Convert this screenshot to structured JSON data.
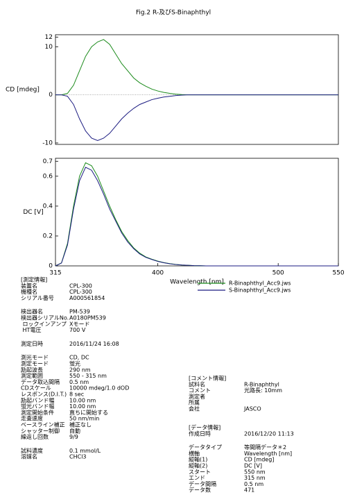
{
  "title": "Fig.2 R-及びS-Binaphthyl",
  "chart_data": [
    {
      "type": "line",
      "ylabel": "CD [mdeg]",
      "x": [
        315,
        320,
        325,
        330,
        335,
        340,
        345,
        350,
        355,
        360,
        365,
        370,
        375,
        380,
        385,
        390,
        395,
        400,
        405,
        410,
        415,
        420,
        425,
        430,
        435,
        440,
        445,
        450,
        455,
        460,
        465,
        470,
        475,
        480,
        485,
        490,
        495,
        500,
        505,
        510,
        515,
        520,
        525,
        530,
        535,
        540,
        545,
        550
      ],
      "xlim": [
        315,
        550
      ],
      "ylim": [
        -10.3,
        12.5
      ],
      "yticks": [
        -10,
        0,
        10,
        12
      ],
      "series": [
        {
          "color": "#1a8a1a",
          "values": [
            0,
            0,
            0.3,
            2,
            5,
            8,
            10,
            11,
            11.5,
            10.5,
            8.5,
            6.5,
            5,
            3.5,
            2.5,
            1.8,
            1.2,
            0.8,
            0.5,
            0.3,
            0.15,
            0.05,
            0,
            0,
            0,
            0,
            0,
            0,
            0,
            0,
            0,
            0,
            0,
            0,
            0,
            0,
            0,
            0,
            0,
            0,
            0,
            0,
            0,
            0,
            0,
            0,
            0,
            0
          ]
        },
        {
          "color": "#1a1a80",
          "values": [
            0,
            0,
            -0.3,
            -2,
            -5,
            -7.5,
            -9,
            -9.5,
            -9,
            -8,
            -6.5,
            -5,
            -3.8,
            -2.8,
            -2,
            -1.5,
            -1,
            -0.7,
            -0.45,
            -0.3,
            -0.15,
            -0.05,
            0,
            0,
            0,
            0,
            0,
            0,
            0,
            0,
            0,
            0,
            0,
            0,
            0,
            0,
            0,
            0,
            0,
            0,
            0,
            0,
            0,
            0,
            0,
            0,
            0,
            0
          ]
        }
      ]
    },
    {
      "type": "line",
      "ylabel": "DC [V]",
      "xlabel": "Wavelength [nm]",
      "x": [
        315,
        320,
        325,
        330,
        335,
        340,
        345,
        350,
        355,
        360,
        365,
        370,
        375,
        380,
        385,
        390,
        395,
        400,
        405,
        410,
        415,
        420,
        425,
        430,
        435,
        440,
        445,
        450,
        455,
        460,
        465,
        470,
        475,
        480,
        485,
        490,
        495,
        500,
        505,
        510,
        515,
        520,
        525,
        530,
        535,
        540,
        545,
        550
      ],
      "xlim": [
        315,
        550
      ],
      "xticks": [
        315,
        400,
        500,
        550
      ],
      "ylim": [
        0,
        0.72
      ],
      "yticks": [
        0,
        0.2,
        0.4,
        0.6,
        0.7
      ],
      "series": [
        {
          "name": "R-Binaphthyl_Acc9.jws",
          "color": "#1a8a1a",
          "values": [
            0,
            0.02,
            0.15,
            0.4,
            0.6,
            0.69,
            0.67,
            0.6,
            0.5,
            0.4,
            0.31,
            0.23,
            0.17,
            0.12,
            0.085,
            0.06,
            0.045,
            0.032,
            0.022,
            0.015,
            0.01,
            0.006,
            0.004,
            0.002,
            0.001,
            0,
            0,
            0,
            0,
            0,
            0,
            0,
            0,
            0,
            0,
            0,
            0,
            0,
            0,
            0,
            0,
            0,
            0,
            0,
            0,
            0,
            0,
            0
          ]
        },
        {
          "name": "S-Binaphthyl_Acc9.jws",
          "color": "#1a1a80",
          "values": [
            0,
            0.019,
            0.14,
            0.38,
            0.57,
            0.66,
            0.64,
            0.57,
            0.48,
            0.38,
            0.3,
            0.22,
            0.16,
            0.115,
            0.08,
            0.057,
            0.043,
            0.03,
            0.021,
            0.014,
            0.009,
            0.006,
            0.004,
            0.002,
            0.001,
            0,
            0,
            0,
            0,
            0,
            0,
            0,
            0,
            0,
            0,
            0,
            0,
            0,
            0,
            0,
            0,
            0,
            0,
            0,
            0,
            0,
            0,
            0
          ]
        }
      ]
    }
  ],
  "info": {
    "left": [
      {
        "title": "[測定情報]",
        "groups": [
          [
            [
              "装置名",
              "CPL-300"
            ],
            [
              "機種名",
              "CPL-300"
            ],
            [
              "シリアル番号",
              "A000561854"
            ]
          ],
          [
            [
              "検出器名",
              "PM-539"
            ],
            [
              "検出器シリアルNo.",
              "A0180PM539"
            ],
            [
              " ロックインアンプ",
              "Xモード"
            ],
            [
              " HT電圧",
              "700 V"
            ]
          ],
          [
            [
              "測定日時",
              "2016/11/24 16:08"
            ]
          ],
          [
            [
              "測光モード",
              "CD, DC"
            ],
            [
              "測定モード",
              "蛍光"
            ],
            [
              "励起波長",
              "290 nm"
            ],
            [
              "測定範囲",
              "550 - 315 nm"
            ],
            [
              "データ取込間隔",
              "0.5 nm"
            ],
            [
              "CDスケール",
              "10000 mdeg/1.0 dOD"
            ],
            [
              "レスポンス(D.I.T.)",
              "8 sec"
            ],
            [
              "励起バンド幅",
              "10.00 nm"
            ],
            [
              "蛍光バンド幅",
              "10.00 nm"
            ],
            [
              "測定開始条件",
              "直ちに開始する"
            ],
            [
              "走査速度",
              "50 nm/min"
            ],
            [
              "ベースライン補正",
              "補正なし"
            ],
            [
              "シャッター制御",
              "自動"
            ],
            [
              "繰返し回数",
              "9/9"
            ]
          ],
          [
            [
              "試料濃度",
              "0.1 mmol/L"
            ],
            [
              "溶媒名",
              "CHCl3"
            ]
          ]
        ]
      }
    ],
    "right": [
      {
        "title": "[コメント情報]",
        "groups": [
          [
            [
              "試料名",
              "R-Binaphthyl"
            ],
            [
              "コメント",
              "光路長: 10mm"
            ],
            [
              "測定者"
            ],
            [
              "所属"
            ],
            [
              "会社",
              "JASCO"
            ]
          ]
        ]
      },
      {
        "title": "[データ情報]",
        "groups": [
          [
            [
              "作成日時",
              "2016/12/20 11:13"
            ]
          ],
          [
            [
              "データタイプ",
              "等間隔データ＊2"
            ],
            [
              "横軸",
              "Wavelength [nm]"
            ],
            [
              "縦軸(1)",
              "CD [mdeg]"
            ],
            [
              "縦軸(2)",
              "DC [V]"
            ],
            [
              "スタート",
              "550 nm"
            ],
            [
              "エンド",
              "315 nm"
            ],
            [
              "データ間隔",
              "0.5 nm"
            ],
            [
              "データ数",
              "471"
            ]
          ]
        ]
      }
    ]
  }
}
